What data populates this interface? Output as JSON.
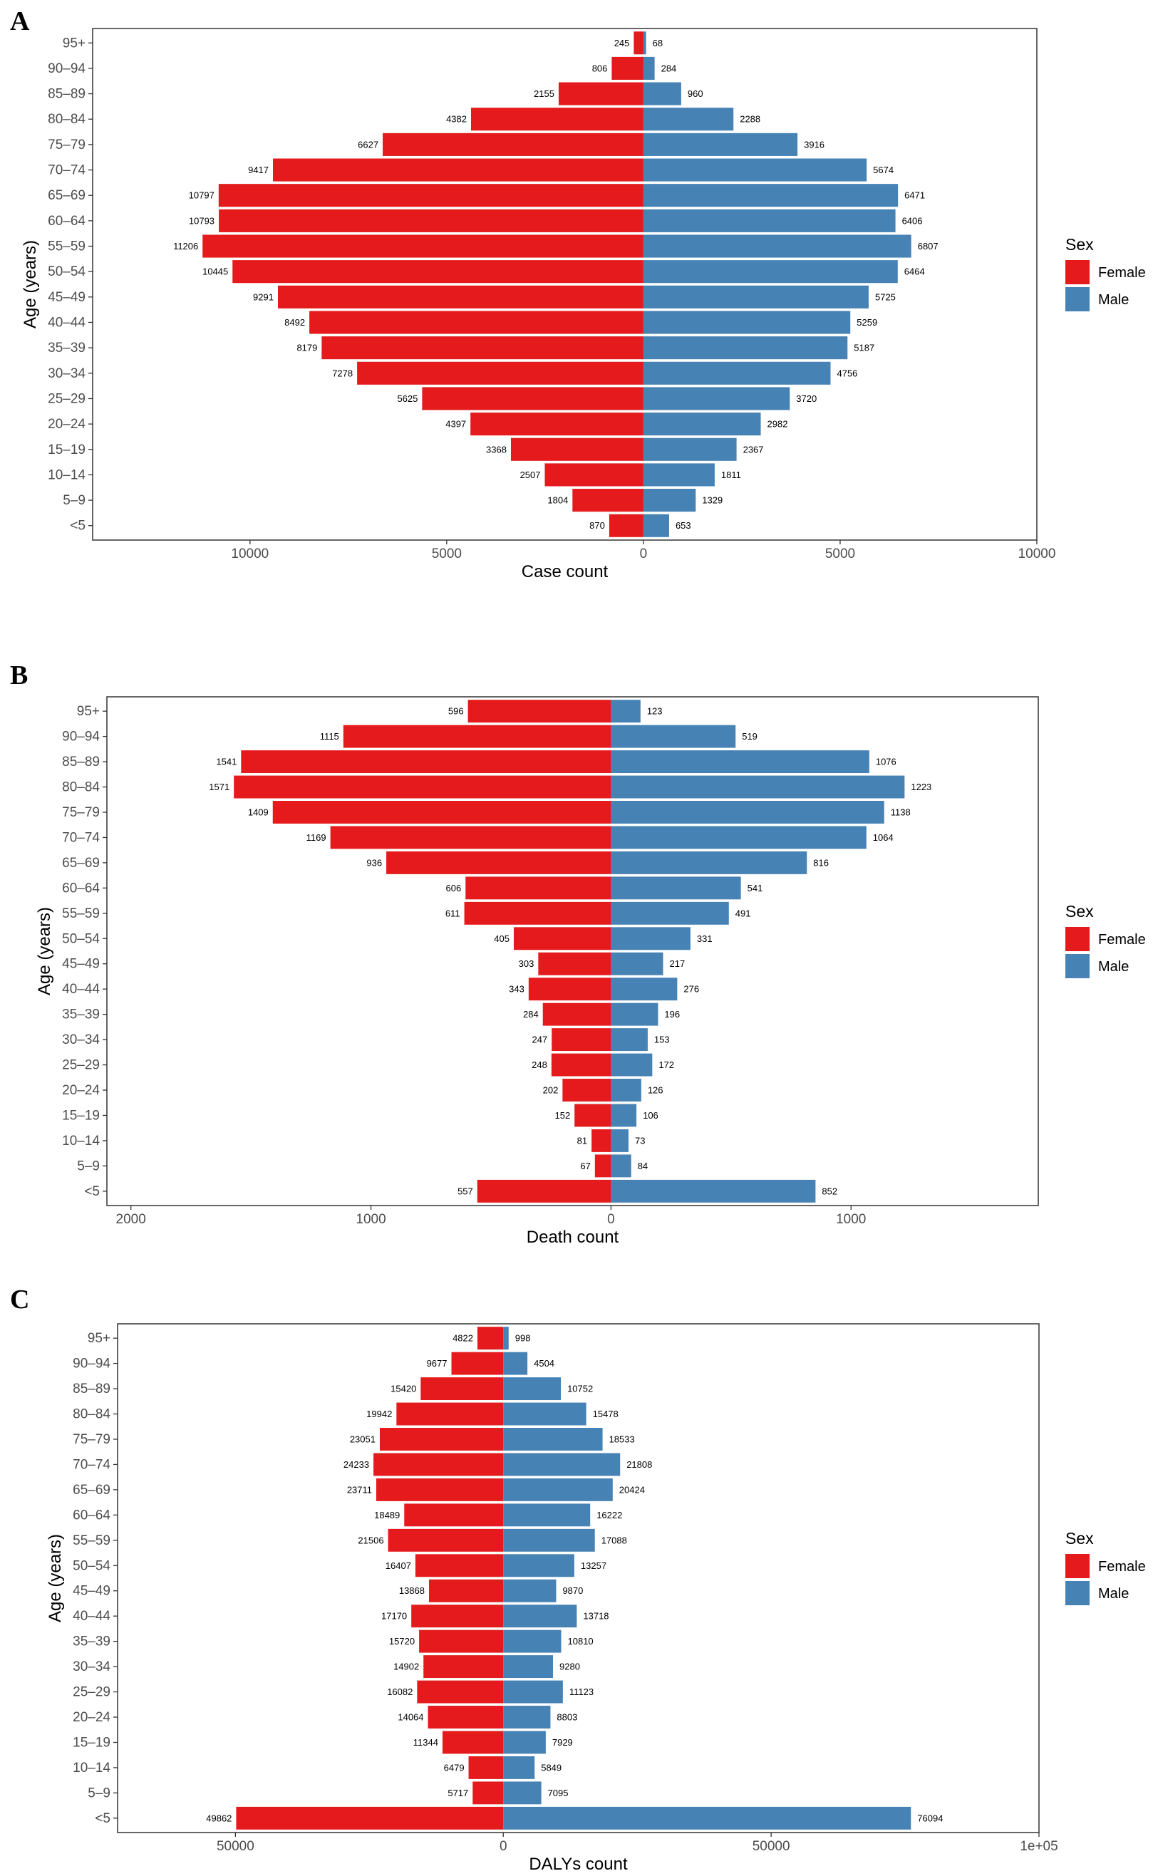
{
  "colors": {
    "female": "#e41a1c",
    "male": "#4682b4"
  },
  "chart_data": [
    {
      "type": "bar",
      "orientation": "horizontal-population-pyramid",
      "panel_label": "A",
      "xlabel": "Case count",
      "ylabel": "Age (years)",
      "xlim": [
        -14000,
        10000
      ],
      "xticks": [
        -10000,
        -5000,
        0,
        5000,
        10000
      ],
      "xtick_labels": [
        "10000",
        "5000",
        "0",
        "5000",
        "10000"
      ],
      "categories": [
        "95+",
        "90–94",
        "85–89",
        "80–84",
        "75–79",
        "70–74",
        "65–69",
        "60–64",
        "55–59",
        "50–54",
        "45–49",
        "40–44",
        "35–39",
        "30–34",
        "25–29",
        "20–24",
        "15–19",
        "10–14",
        "5–9",
        "<5"
      ],
      "series": [
        {
          "name": "Female",
          "values": [
            245,
            806,
            2155,
            4382,
            6627,
            9417,
            10797,
            10793,
            11206,
            10445,
            9291,
            8492,
            8179,
            7278,
            5625,
            4397,
            3368,
            2507,
            1804,
            870
          ]
        },
        {
          "name": "Male",
          "values": [
            68,
            284,
            960,
            2288,
            3916,
            5674,
            6471,
            6406,
            6807,
            6464,
            5725,
            5259,
            5187,
            4756,
            3720,
            2982,
            2367,
            1811,
            1329,
            653
          ]
        }
      ],
      "legend": {
        "title": "Sex",
        "entries": [
          "Female",
          "Male"
        ],
        "position": "right"
      }
    },
    {
      "type": "bar",
      "orientation": "horizontal-population-pyramid",
      "panel_label": "B",
      "xlabel": "Death count",
      "ylabel": "Age (years)",
      "xlim": [
        -2100,
        1780
      ],
      "xticks": [
        -2000,
        -1000,
        0,
        1000
      ],
      "xtick_labels": [
        "2000",
        "1000",
        "0",
        "1000"
      ],
      "categories": [
        "95+",
        "90–94",
        "85–89",
        "80–84",
        "75–79",
        "70–74",
        "65–69",
        "60–64",
        "55–59",
        "50–54",
        "45–49",
        "40–44",
        "35–39",
        "30–34",
        "25–29",
        "20–24",
        "15–19",
        "10–14",
        "5–9",
        "<5"
      ],
      "series": [
        {
          "name": "Female",
          "values": [
            596,
            1115,
            1541,
            1571,
            1409,
            1169,
            936,
            606,
            611,
            405,
            303,
            343,
            284,
            247,
            248,
            202,
            152,
            81,
            67,
            557
          ]
        },
        {
          "name": "Male",
          "values": [
            123,
            519,
            1076,
            1223,
            1138,
            1064,
            816,
            541,
            491,
            331,
            217,
            276,
            196,
            153,
            172,
            126,
            106,
            73,
            84,
            852
          ]
        }
      ],
      "legend": {
        "title": "Sex",
        "entries": [
          "Female",
          "Male"
        ],
        "position": "right"
      }
    },
    {
      "type": "bar",
      "orientation": "horizontal-population-pyramid",
      "panel_label": "C",
      "xlabel": "DALYs count",
      "ylabel": "Age (years)",
      "xlim": [
        -72000,
        100000
      ],
      "xticks": [
        -50000,
        0,
        50000,
        100000
      ],
      "xtick_labels": [
        "50000",
        "0",
        "50000",
        "1e+05"
      ],
      "categories": [
        "95+",
        "90–94",
        "85–89",
        "80–84",
        "75–79",
        "70–74",
        "65–69",
        "60–64",
        "55–59",
        "50–54",
        "45–49",
        "40–44",
        "35–39",
        "30–34",
        "25–29",
        "20–24",
        "15–19",
        "10–14",
        "5–9",
        "<5"
      ],
      "series": [
        {
          "name": "Female",
          "values": [
            4822,
            9677,
            15420,
            19942,
            23051,
            24233,
            23711,
            18489,
            21506,
            16407,
            13868,
            17170,
            15720,
            14902,
            16082,
            14064,
            11344,
            6479,
            5717,
            49862
          ]
        },
        {
          "name": "Male",
          "values": [
            998,
            4504,
            10752,
            15478,
            18533,
            21808,
            20424,
            16222,
            17088,
            13257,
            9870,
            13718,
            10810,
            9280,
            11123,
            8803,
            7929,
            5849,
            7095,
            76094
          ]
        }
      ],
      "legend": {
        "title": "Sex",
        "entries": [
          "Female",
          "Male"
        ],
        "position": "right"
      }
    }
  ]
}
